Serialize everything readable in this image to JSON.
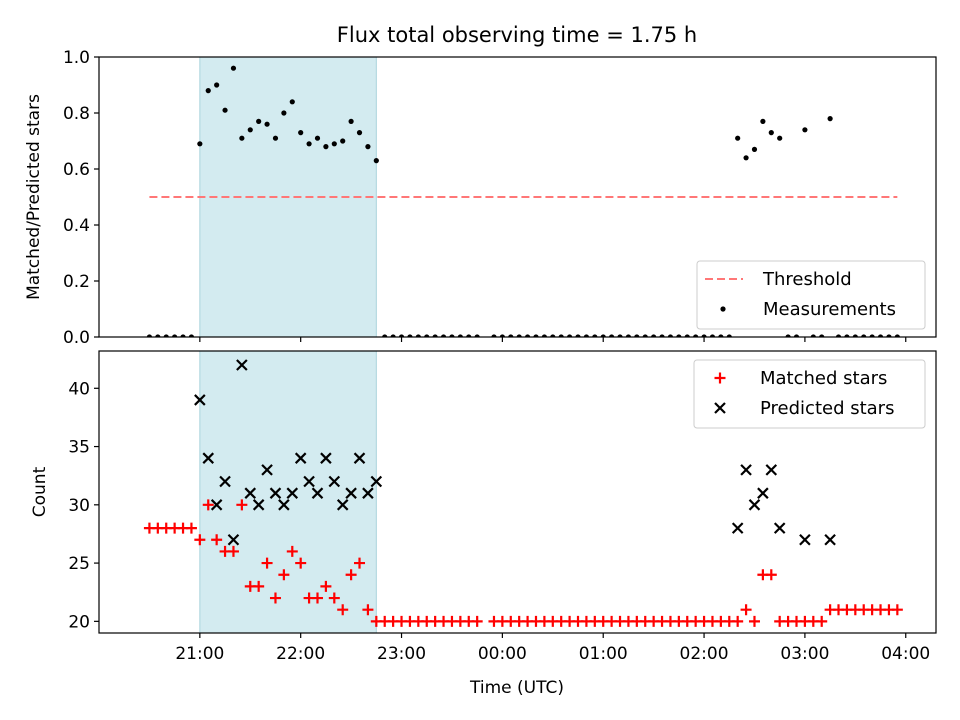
{
  "chart_data": [
    {
      "type": "scatter",
      "title": "Flux total observing time = 1.75 h",
      "xlabel": "",
      "ylabel": "Matched/Predicted stars",
      "x_tick_labels": [
        "21:00",
        "22:00",
        "23:00",
        "00:00",
        "01:00",
        "02:00",
        "03:00",
        "04:00"
      ],
      "y_tick_labels": [
        "0.0",
        "0.2",
        "0.4",
        "0.6",
        "0.8",
        "1.0"
      ],
      "ylim": [
        0,
        1.0
      ],
      "xlim_hours_utc_from_prev_midnight": [
        20.0,
        28.3
      ],
      "shaded_interval_utc": [
        "21:00",
        "22:45"
      ],
      "shaded_color": "#d3ebf0",
      "legend_position": "lower-right",
      "series": [
        {
          "name": "Threshold",
          "style": "dashed-line",
          "color": "#ff7777",
          "points": [
            [
              "20:30",
              0.5
            ],
            [
              "03:55",
              0.5
            ]
          ]
        },
        {
          "name": "Measurements",
          "style": "dot",
          "color": "#000000",
          "points": [
            [
              "20:30",
              0.0
            ],
            [
              "20:35",
              0.0
            ],
            [
              "20:40",
              0.0
            ],
            [
              "20:45",
              0.0
            ],
            [
              "20:50",
              0.0
            ],
            [
              "20:55",
              0.0
            ],
            [
              "21:00",
              0.69
            ],
            [
              "21:05",
              0.88
            ],
            [
              "21:10",
              0.9
            ],
            [
              "21:15",
              0.81
            ],
            [
              "21:20",
              0.96
            ],
            [
              "21:25",
              0.71
            ],
            [
              "21:30",
              0.74
            ],
            [
              "21:35",
              0.77
            ],
            [
              "21:40",
              0.76
            ],
            [
              "21:45",
              0.71
            ],
            [
              "21:50",
              0.8
            ],
            [
              "21:55",
              0.84
            ],
            [
              "22:00",
              0.73
            ],
            [
              "22:05",
              0.69
            ],
            [
              "22:10",
              0.71
            ],
            [
              "22:15",
              0.68
            ],
            [
              "22:20",
              0.69
            ],
            [
              "22:25",
              0.7
            ],
            [
              "22:30",
              0.77
            ],
            [
              "22:35",
              0.73
            ],
            [
              "22:40",
              0.68
            ],
            [
              "22:45",
              0.63
            ],
            [
              "22:50",
              0.0
            ],
            [
              "22:55",
              0.0
            ],
            [
              "23:00",
              0.0
            ],
            [
              "23:05",
              0.0
            ],
            [
              "23:10",
              0.0
            ],
            [
              "23:15",
              0.0
            ],
            [
              "23:20",
              0.0
            ],
            [
              "23:25",
              0.0
            ],
            [
              "23:30",
              0.0
            ],
            [
              "23:35",
              0.0
            ],
            [
              "23:40",
              0.0
            ],
            [
              "23:45",
              0.0
            ],
            [
              "23:55",
              0.0
            ],
            [
              "00:00",
              0.0
            ],
            [
              "00:05",
              0.0
            ],
            [
              "00:10",
              0.0
            ],
            [
              "00:15",
              0.0
            ],
            [
              "00:20",
              0.0
            ],
            [
              "00:25",
              0.0
            ],
            [
              "00:30",
              0.0
            ],
            [
              "00:35",
              0.0
            ],
            [
              "00:40",
              0.0
            ],
            [
              "00:45",
              0.0
            ],
            [
              "00:50",
              0.0
            ],
            [
              "00:55",
              0.0
            ],
            [
              "01:00",
              0.0
            ],
            [
              "01:05",
              0.0
            ],
            [
              "01:10",
              0.0
            ],
            [
              "01:15",
              0.0
            ],
            [
              "01:20",
              0.0
            ],
            [
              "01:25",
              0.0
            ],
            [
              "01:30",
              0.0
            ],
            [
              "01:35",
              0.0
            ],
            [
              "01:40",
              0.0
            ],
            [
              "01:45",
              0.0
            ],
            [
              "01:50",
              0.0
            ],
            [
              "01:55",
              0.0
            ],
            [
              "02:00",
              0.0
            ],
            [
              "02:05",
              0.0
            ],
            [
              "02:10",
              0.0
            ],
            [
              "02:15",
              0.0
            ],
            [
              "02:20",
              0.71
            ],
            [
              "02:25",
              0.64
            ],
            [
              "02:30",
              0.67
            ],
            [
              "02:35",
              0.77
            ],
            [
              "02:40",
              0.73
            ],
            [
              "02:45",
              0.71
            ],
            [
              "02:50",
              0.0
            ],
            [
              "02:55",
              0.0
            ],
            [
              "03:00",
              0.74
            ],
            [
              "03:05",
              0.0
            ],
            [
              "03:10",
              0.0
            ],
            [
              "03:15",
              0.78
            ],
            [
              "03:20",
              0.0
            ],
            [
              "03:25",
              0.0
            ],
            [
              "03:30",
              0.0
            ],
            [
              "03:35",
              0.0
            ],
            [
              "03:40",
              0.0
            ],
            [
              "03:45",
              0.0
            ],
            [
              "03:50",
              0.0
            ],
            [
              "03:55",
              0.0
            ]
          ]
        }
      ]
    },
    {
      "type": "scatter",
      "title": "",
      "xlabel": "Time (UTC)",
      "ylabel": "Count",
      "x_tick_labels": [
        "21:00",
        "22:00",
        "23:00",
        "00:00",
        "01:00",
        "02:00",
        "03:00",
        "04:00"
      ],
      "y_tick_labels": [
        "20",
        "25",
        "30",
        "35",
        "40"
      ],
      "ylim": [
        19.0,
        43.2
      ],
      "shaded_interval_utc": [
        "21:00",
        "22:45"
      ],
      "legend_position": "top-right",
      "series": [
        {
          "name": "Matched stars",
          "style": "plus",
          "color": "#ff0000",
          "points": [
            [
              "20:30",
              28
            ],
            [
              "20:35",
              28
            ],
            [
              "20:40",
              28
            ],
            [
              "20:45",
              28
            ],
            [
              "20:50",
              28
            ],
            [
              "20:55",
              28
            ],
            [
              "21:00",
              27
            ],
            [
              "21:05",
              30
            ],
            [
              "21:10",
              27
            ],
            [
              "21:15",
              26
            ],
            [
              "21:20",
              26
            ],
            [
              "21:25",
              30
            ],
            [
              "21:30",
              23
            ],
            [
              "21:35",
              23
            ],
            [
              "21:40",
              25
            ],
            [
              "21:45",
              22
            ],
            [
              "21:50",
              24
            ],
            [
              "21:55",
              26
            ],
            [
              "22:00",
              25
            ],
            [
              "22:05",
              22
            ],
            [
              "22:10",
              22
            ],
            [
              "22:15",
              23
            ],
            [
              "22:20",
              22
            ],
            [
              "22:25",
              21
            ],
            [
              "22:30",
              24
            ],
            [
              "22:35",
              25
            ],
            [
              "22:40",
              21
            ],
            [
              "22:45",
              20
            ],
            [
              "22:50",
              20
            ],
            [
              "22:55",
              20
            ],
            [
              "23:00",
              20
            ],
            [
              "23:05",
              20
            ],
            [
              "23:10",
              20
            ],
            [
              "23:15",
              20
            ],
            [
              "23:20",
              20
            ],
            [
              "23:25",
              20
            ],
            [
              "23:30",
              20
            ],
            [
              "23:35",
              20
            ],
            [
              "23:40",
              20
            ],
            [
              "23:45",
              20
            ],
            [
              "23:55",
              20
            ],
            [
              "00:00",
              20
            ],
            [
              "00:05",
              20
            ],
            [
              "00:10",
              20
            ],
            [
              "00:15",
              20
            ],
            [
              "00:20",
              20
            ],
            [
              "00:25",
              20
            ],
            [
              "00:30",
              20
            ],
            [
              "00:35",
              20
            ],
            [
              "00:40",
              20
            ],
            [
              "00:45",
              20
            ],
            [
              "00:50",
              20
            ],
            [
              "00:55",
              20
            ],
            [
              "01:00",
              20
            ],
            [
              "01:05",
              20
            ],
            [
              "01:10",
              20
            ],
            [
              "01:15",
              20
            ],
            [
              "01:20",
              20
            ],
            [
              "01:25",
              20
            ],
            [
              "01:30",
              20
            ],
            [
              "01:35",
              20
            ],
            [
              "01:40",
              20
            ],
            [
              "01:45",
              20
            ],
            [
              "01:50",
              20
            ],
            [
              "01:55",
              20
            ],
            [
              "02:00",
              20
            ],
            [
              "02:05",
              20
            ],
            [
              "02:10",
              20
            ],
            [
              "02:15",
              20
            ],
            [
              "02:20",
              20
            ],
            [
              "02:25",
              21
            ],
            [
              "02:30",
              20
            ],
            [
              "02:35",
              24
            ],
            [
              "02:40",
              24
            ],
            [
              "02:45",
              20
            ],
            [
              "02:50",
              20
            ],
            [
              "02:55",
              20
            ],
            [
              "03:00",
              20
            ],
            [
              "03:05",
              20
            ],
            [
              "03:10",
              20
            ],
            [
              "03:15",
              21
            ],
            [
              "03:20",
              21
            ],
            [
              "03:25",
              21
            ],
            [
              "03:30",
              21
            ],
            [
              "03:35",
              21
            ],
            [
              "03:40",
              21
            ],
            [
              "03:45",
              21
            ],
            [
              "03:50",
              21
            ],
            [
              "03:55",
              21
            ]
          ]
        },
        {
          "name": "Predicted stars",
          "style": "x",
          "color": "#000000",
          "points": [
            [
              "21:00",
              39
            ],
            [
              "21:05",
              34
            ],
            [
              "21:10",
              30
            ],
            [
              "21:15",
              32
            ],
            [
              "21:20",
              27
            ],
            [
              "21:25",
              42
            ],
            [
              "21:30",
              31
            ],
            [
              "21:35",
              30
            ],
            [
              "21:40",
              33
            ],
            [
              "21:45",
              31
            ],
            [
              "21:50",
              30
            ],
            [
              "21:55",
              31
            ],
            [
              "22:00",
              34
            ],
            [
              "22:05",
              32
            ],
            [
              "22:10",
              31
            ],
            [
              "22:15",
              34
            ],
            [
              "22:20",
              32
            ],
            [
              "22:25",
              30
            ],
            [
              "22:30",
              31
            ],
            [
              "22:35",
              34
            ],
            [
              "22:40",
              31
            ],
            [
              "22:45",
              32
            ],
            [
              "02:20",
              28
            ],
            [
              "02:25",
              33
            ],
            [
              "02:30",
              30
            ],
            [
              "02:35",
              31
            ],
            [
              "02:40",
              33
            ],
            [
              "02:45",
              28
            ],
            [
              "03:00",
              27
            ],
            [
              "03:15",
              27
            ]
          ]
        }
      ]
    }
  ]
}
